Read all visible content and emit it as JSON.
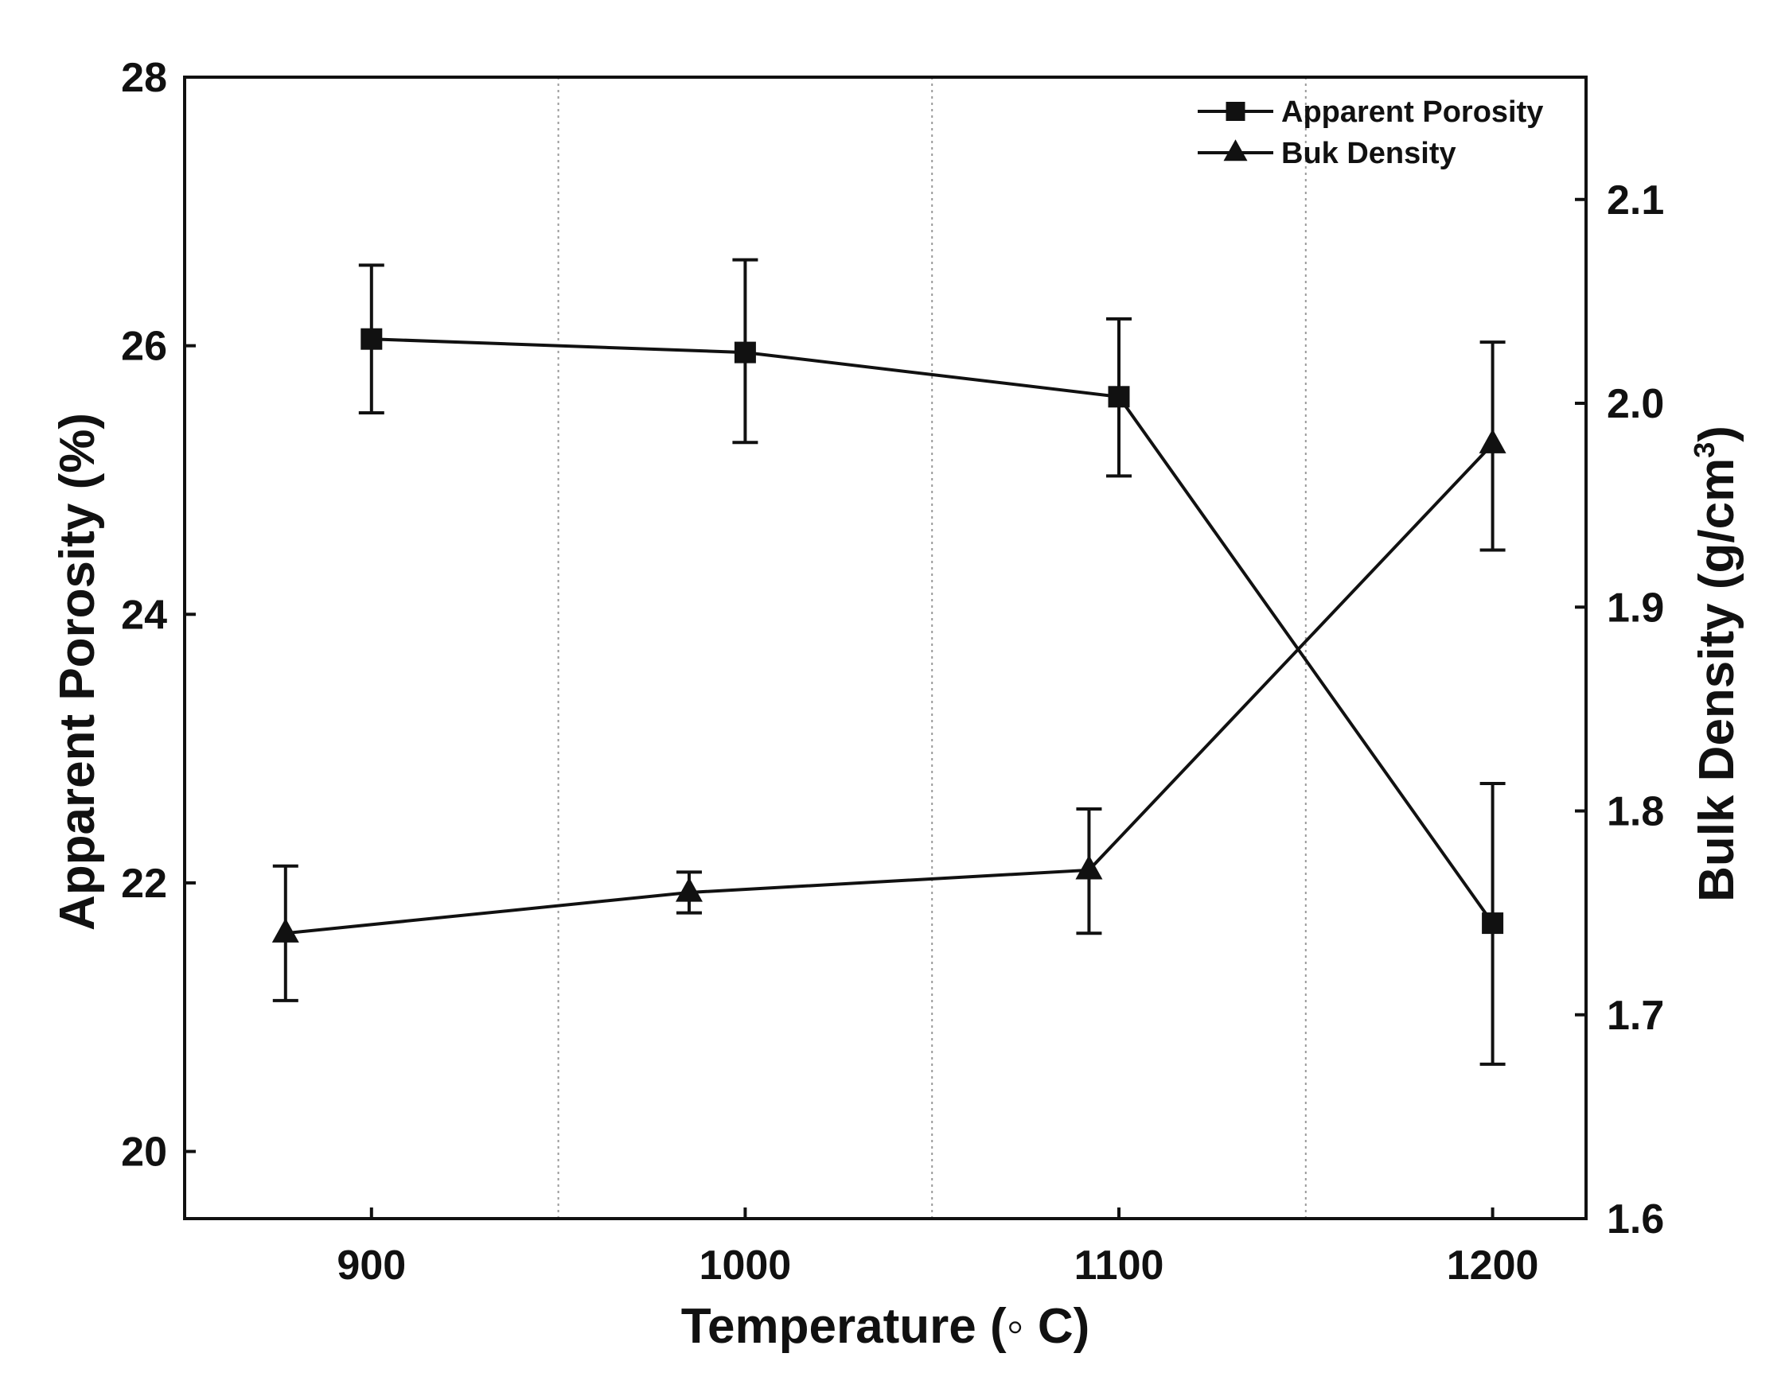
{
  "chart_data": {
    "type": "line",
    "title": "",
    "xlabel": "Temperature (◦ C)",
    "ylabel_left": "Apparent Porosity (%)",
    "ylabel_right_main": "Bulk Density (g/cm",
    "ylabel_right_sup": "3",
    "ylabel_right_close": ")",
    "xlim": [
      850,
      1225
    ],
    "ylim_left": [
      19.5,
      28
    ],
    "ylim_right": [
      1.6,
      2.16
    ],
    "x_ticks": [
      {
        "value": 900,
        "label": "900"
      },
      {
        "value": 1000,
        "label": "1000"
      },
      {
        "value": 1100,
        "label": "1100"
      },
      {
        "value": 1200,
        "label": "1200"
      }
    ],
    "y_left_ticks": [
      {
        "value": 20,
        "label": "20"
      },
      {
        "value": 22,
        "label": "22"
      },
      {
        "value": 24,
        "label": "24"
      },
      {
        "value": 26,
        "label": "26"
      },
      {
        "value": 28,
        "label": "28"
      }
    ],
    "y_right_ticks": [
      {
        "value": 1.6,
        "label": "1.6"
      },
      {
        "value": 1.7,
        "label": "1.7"
      },
      {
        "value": 1.8,
        "label": "1.8"
      },
      {
        "value": 1.9,
        "label": "1.9"
      },
      {
        "value": 2.0,
        "label": "2.0"
      },
      {
        "value": 2.1,
        "label": "2.1"
      }
    ],
    "vertical_dotted_lines": [
      950,
      1050,
      1150
    ],
    "legend_position": "top-right",
    "series": [
      {
        "name": "Apparent Porosity",
        "marker": "square",
        "axis": "left",
        "points": [
          {
            "x": 900,
            "y": 26.05,
            "err_low": 25.5,
            "err_high": 26.6
          },
          {
            "x": 1000,
            "y": 25.95,
            "err_low": 25.28,
            "err_high": 26.64
          },
          {
            "x": 1100,
            "y": 25.62,
            "err_low": 25.03,
            "err_high": 26.2
          },
          {
            "x": 1200,
            "y": 21.7,
            "err_low": 20.65,
            "err_high": 22.74
          }
        ]
      },
      {
        "name": "Buk Density",
        "marker": "triangle",
        "axis": "right",
        "points": [
          {
            "x": 877,
            "y": 1.74,
            "err_low": 1.707,
            "err_high": 1.773
          },
          {
            "x": 985,
            "y": 1.76,
            "err_low": 1.75,
            "err_high": 1.77
          },
          {
            "x": 1092,
            "y": 1.771,
            "err_low": 1.74,
            "err_high": 1.801
          },
          {
            "x": 1200,
            "y": 1.98,
            "err_low": 1.928,
            "err_high": 2.03
          }
        ]
      }
    ]
  }
}
